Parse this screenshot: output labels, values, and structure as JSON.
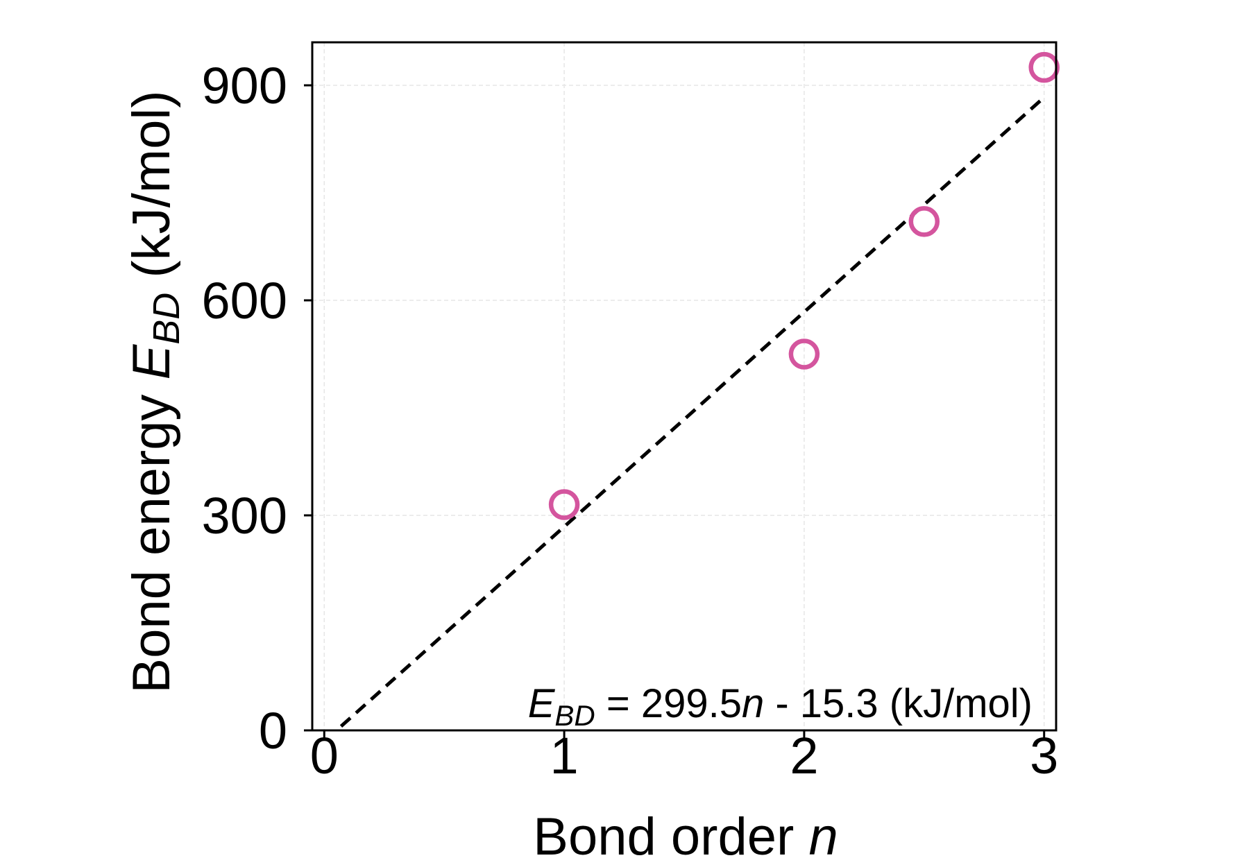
{
  "chart_data": {
    "type": "scatter",
    "xlabel": "Bond order ",
    "xlabel_var": "n",
    "ylabel": "Bond energy ",
    "ylabel_var": "E",
    "ylabel_sub": "BD",
    "ylabel_unit": " (kJ/mol)",
    "xlim": [
      -0.05,
      3.05
    ],
    "ylim": [
      0,
      960
    ],
    "xticks": [
      0,
      1,
      2,
      3
    ],
    "xtick_labels": [
      "0",
      "1",
      "2",
      "3"
    ],
    "yticks": [
      0,
      300,
      600,
      900
    ],
    "ytick_labels": [
      "0",
      "300",
      "600",
      "900"
    ],
    "grid": true,
    "marker_color": "#d4559e",
    "fit_color": "#000000",
    "points": [
      {
        "x": 1,
        "y": 315
      },
      {
        "x": 2,
        "y": 525
      },
      {
        "x": 2.5,
        "y": 710
      },
      {
        "x": 3,
        "y": 925
      }
    ],
    "fit": {
      "slope": 299.5,
      "intercept": -15.3,
      "x_range": [
        0.07,
        3
      ]
    },
    "annotation": {
      "var": "E",
      "sub": "BD",
      "eq": " = 299.5",
      "n": "n",
      "rest": " - 15.3 (kJ/mol)"
    }
  }
}
